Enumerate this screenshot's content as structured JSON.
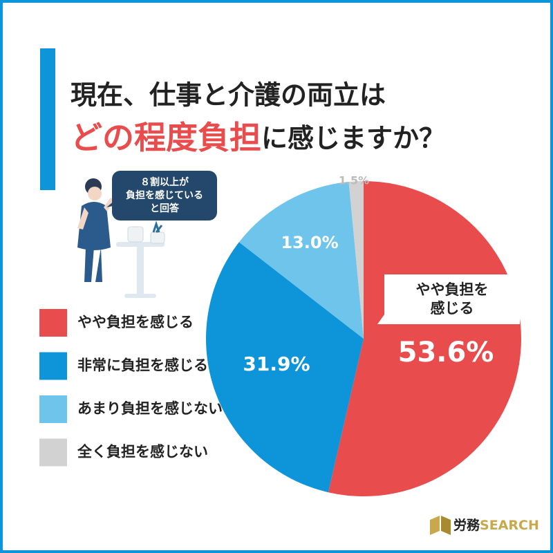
{
  "chart_data": {
    "type": "pie",
    "title_line1": "現在、仕事と介護の両立は",
    "title_highlight": "どの程度負担",
    "title_rest": "に感じますか？",
    "categories": [
      "やや負担を感じる",
      "非常に負担を感じる",
      "あまり負担を感じない",
      "全く負担を感じない"
    ],
    "values": [
      53.6,
      31.9,
      13.0,
      1.5
    ],
    "value_labels": [
      "53.6%",
      "31.9%",
      "13.0%",
      "1.5%"
    ],
    "colors": [
      "#e84c4c",
      "#0e95d9",
      "#6ec4eb",
      "#d2d2d2"
    ],
    "callout": [
      "やや負担を",
      "感じる"
    ],
    "bubble": [
      "８割以上が",
      "負担を感じている",
      "と回答"
    ],
    "brand": [
      "労務",
      "SEARCH"
    ]
  }
}
